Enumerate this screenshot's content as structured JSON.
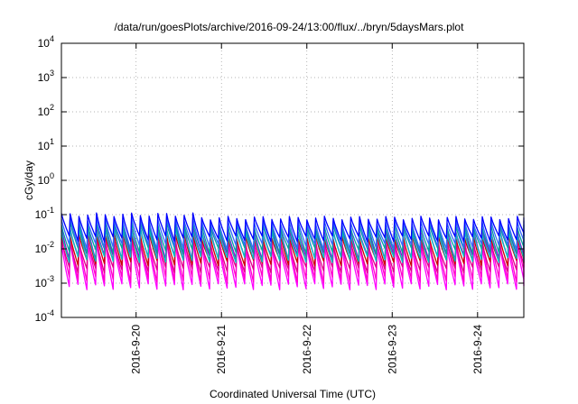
{
  "chart_data": {
    "type": "line",
    "title": "/data/run/goesPlots/archive/2016-09-24/13:00/flux/../bryn/5daysMars.plot",
    "xlabel": "Coordinated Universal Time (UTC)",
    "ylabel": "cGy/day",
    "x_axis": {
      "type": "time",
      "range": [
        "2016-09-19 03:00",
        "2016-09-24 13:00"
      ],
      "ticks": [
        "2016-9-20",
        "2016-9-21",
        "2016-9-22",
        "2016-9-23",
        "2016-9-24"
      ]
    },
    "y_axis": {
      "scale": "log",
      "range": [
        0.0001,
        10000
      ],
      "ticks": [
        {
          "base": "10",
          "exp": "-4"
        },
        {
          "base": "10",
          "exp": "-3"
        },
        {
          "base": "10",
          "exp": "-2"
        },
        {
          "base": "10",
          "exp": "-1"
        },
        {
          "base": "10",
          "exp": "0"
        },
        {
          "base": "10",
          "exp": "1"
        },
        {
          "base": "10",
          "exp": "2"
        },
        {
          "base": "10",
          "exp": "3"
        },
        {
          "base": "10",
          "exp": "4"
        }
      ]
    },
    "grid": true,
    "pattern": {
      "cycle_hours": 2.465,
      "first_peak": "2016-09-19 03:00"
    },
    "series": [
      {
        "color": "#ff00ff",
        "peak": 0.012,
        "trough": 0.0008
      },
      {
        "color": "#ff00cc",
        "peak": 0.018,
        "trough": 0.0013
      },
      {
        "color": "#e0008a",
        "peak": 0.014,
        "trough": 0.0025
      },
      {
        "color": "#cc0000",
        "peak": 0.022,
        "trough": 0.004
      },
      {
        "color": "#9900cc",
        "peak": 0.035,
        "trough": 0.006
      },
      {
        "color": "#00c0c0",
        "peak": 0.03,
        "trough": 0.005
      },
      {
        "color": "#00a0a0",
        "peak": 0.045,
        "trough": 0.009
      },
      {
        "color": "#3366ff",
        "peak": 0.06,
        "trough": 0.012
      },
      {
        "color": "#0000ff",
        "peak": 0.08,
        "trough": 0.02
      }
    ]
  }
}
